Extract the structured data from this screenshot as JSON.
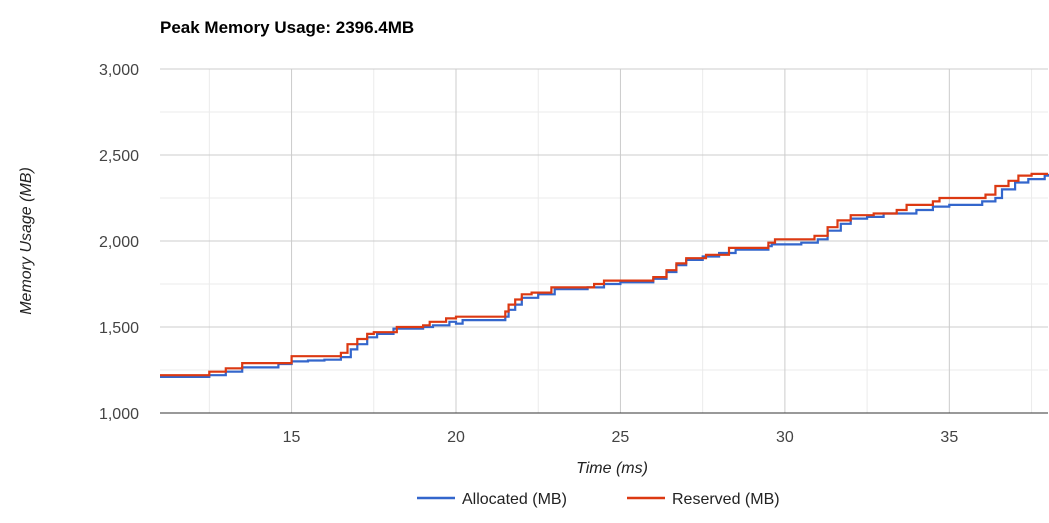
{
  "chart_data": {
    "type": "line",
    "title": "Peak Memory Usage: 2396.4MB",
    "xlabel": "Time (ms)",
    "ylabel": "Memory Usage (MB)",
    "xlim": [
      11,
      38
    ],
    "ylim": [
      1000,
      3000
    ],
    "x_ticks": [
      15,
      20,
      25,
      30,
      35
    ],
    "y_ticks": [
      1000,
      1500,
      2000,
      2500,
      3000
    ],
    "y_tick_labels": [
      "1,000",
      "1,500",
      "2,000",
      "2,500",
      "3,000"
    ],
    "grid": true,
    "legend_position": "bottom",
    "series": [
      {
        "name": "Allocated (MB)",
        "color": "#3366cc",
        "step": true,
        "points": [
          [
            11.0,
            1210
          ],
          [
            12.5,
            1220
          ],
          [
            13.0,
            1240
          ],
          [
            13.5,
            1265
          ],
          [
            14.6,
            1285
          ],
          [
            15.0,
            1300
          ],
          [
            15.5,
            1305
          ],
          [
            16.0,
            1310
          ],
          [
            16.5,
            1325
          ],
          [
            16.8,
            1370
          ],
          [
            17.0,
            1400
          ],
          [
            17.3,
            1440
          ],
          [
            17.6,
            1460
          ],
          [
            18.1,
            1490
          ],
          [
            19.0,
            1500
          ],
          [
            19.3,
            1510
          ],
          [
            19.8,
            1530
          ],
          [
            20.0,
            1520
          ],
          [
            20.2,
            1540
          ],
          [
            21.5,
            1560
          ],
          [
            21.6,
            1600
          ],
          [
            21.8,
            1630
          ],
          [
            22.0,
            1670
          ],
          [
            22.5,
            1690
          ],
          [
            23.0,
            1720
          ],
          [
            24.0,
            1730
          ],
          [
            24.5,
            1750
          ],
          [
            25.0,
            1760
          ],
          [
            26.0,
            1780
          ],
          [
            26.4,
            1820
          ],
          [
            26.7,
            1860
          ],
          [
            27.0,
            1890
          ],
          [
            27.5,
            1910
          ],
          [
            28.0,
            1930
          ],
          [
            28.5,
            1950
          ],
          [
            29.5,
            1970
          ],
          [
            29.6,
            1980
          ],
          [
            30.5,
            1990
          ],
          [
            31.0,
            2010
          ],
          [
            31.3,
            2060
          ],
          [
            31.7,
            2100
          ],
          [
            32.0,
            2130
          ],
          [
            32.5,
            2140
          ],
          [
            33.0,
            2160
          ],
          [
            34.0,
            2180
          ],
          [
            34.5,
            2200
          ],
          [
            35.0,
            2210
          ],
          [
            36.0,
            2230
          ],
          [
            36.4,
            2250
          ],
          [
            36.6,
            2300
          ],
          [
            37.0,
            2340
          ],
          [
            37.4,
            2360
          ],
          [
            37.9,
            2380
          ],
          [
            38.0,
            2390
          ]
        ]
      },
      {
        "name": "Reserved (MB)",
        "color": "#dc3912",
        "step": true,
        "points": [
          [
            11.0,
            1220
          ],
          [
            12.5,
            1240
          ],
          [
            13.0,
            1260
          ],
          [
            13.5,
            1290
          ],
          [
            15.0,
            1330
          ],
          [
            16.5,
            1350
          ],
          [
            16.7,
            1400
          ],
          [
            17.0,
            1430
          ],
          [
            17.3,
            1460
          ],
          [
            17.5,
            1470
          ],
          [
            18.2,
            1500
          ],
          [
            19.0,
            1510
          ],
          [
            19.2,
            1530
          ],
          [
            19.7,
            1550
          ],
          [
            20.0,
            1560
          ],
          [
            21.5,
            1590
          ],
          [
            21.6,
            1630
          ],
          [
            21.8,
            1660
          ],
          [
            22.0,
            1690
          ],
          [
            22.3,
            1700
          ],
          [
            22.9,
            1730
          ],
          [
            24.2,
            1750
          ],
          [
            24.5,
            1770
          ],
          [
            26.0,
            1790
          ],
          [
            26.4,
            1830
          ],
          [
            26.7,
            1870
          ],
          [
            27.0,
            1900
          ],
          [
            27.6,
            1920
          ],
          [
            28.3,
            1960
          ],
          [
            29.5,
            1990
          ],
          [
            29.7,
            2010
          ],
          [
            30.9,
            2030
          ],
          [
            31.3,
            2080
          ],
          [
            31.6,
            2120
          ],
          [
            32.0,
            2150
          ],
          [
            32.7,
            2160
          ],
          [
            33.4,
            2180
          ],
          [
            33.7,
            2210
          ],
          [
            34.5,
            2230
          ],
          [
            34.7,
            2250
          ],
          [
            36.1,
            2270
          ],
          [
            36.4,
            2320
          ],
          [
            36.8,
            2350
          ],
          [
            37.1,
            2380
          ],
          [
            37.5,
            2390
          ],
          [
            38.0,
            2390
          ]
        ]
      }
    ]
  }
}
